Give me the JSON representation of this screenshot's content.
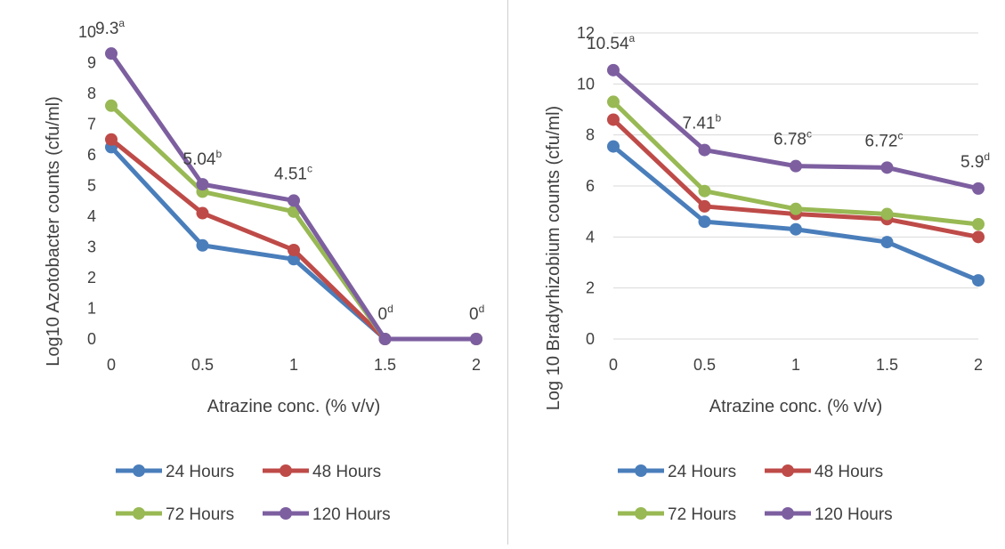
{
  "colors": {
    "s24": "#4a7ebb",
    "s48": "#be4b48",
    "s72": "#98b954",
    "s120": "#7d5fa0"
  },
  "chart_data": [
    {
      "type": "line",
      "x": [
        0,
        0.5,
        1,
        1.5,
        2
      ],
      "x_tick_labels": [
        "0",
        "0.5",
        "1",
        "1.5",
        "2"
      ],
      "y_tick_labels": [
        "0",
        "1",
        "2",
        "3",
        "4",
        "5",
        "6",
        "7",
        "8",
        "9",
        "10"
      ],
      "ylim": [
        0,
        10
      ],
      "xlabel": "Atrazine conc. (% v/v)",
      "ylabel": "Log10  Azotobacter counts (cfu/ml)",
      "grid": false,
      "legend_position": "bottom",
      "series": [
        {
          "name": "24 Hours",
          "color_key": "s24",
          "values": [
            6.25,
            3.05,
            2.6,
            0,
            0
          ]
        },
        {
          "name": "48 Hours",
          "color_key": "s48",
          "values": [
            6.5,
            4.1,
            2.9,
            0,
            0
          ]
        },
        {
          "name": "72 Hours",
          "color_key": "s72",
          "values": [
            7.6,
            4.8,
            4.15,
            0,
            0
          ]
        },
        {
          "name": "120 Hours",
          "color_key": "s120",
          "values": [
            9.3,
            5.04,
            4.51,
            0,
            0
          ]
        }
      ],
      "annotations": [
        {
          "value": "9.3",
          "sup": "a",
          "x": 0,
          "y": 9.3
        },
        {
          "value": "5.04",
          "sup": "b",
          "x": 0.5,
          "y": 5.04
        },
        {
          "value": "4.51",
          "sup": "c",
          "x": 1,
          "y": 4.51
        },
        {
          "value": "0",
          "sup": "d",
          "x": 1.5,
          "y": 0
        },
        {
          "value": "0",
          "sup": "d",
          "x": 2,
          "y": 0
        }
      ]
    },
    {
      "type": "line",
      "x": [
        0,
        0.5,
        1,
        1.5,
        2
      ],
      "x_tick_labels": [
        "0",
        "0.5",
        "1",
        "1.5",
        "2"
      ],
      "y_tick_labels": [
        "0",
        "2",
        "4",
        "6",
        "8",
        "10",
        "12"
      ],
      "ylim": [
        0,
        12
      ],
      "xlabel": "Atrazine conc. (% v/v)",
      "ylabel": "Log 10 Bradyrhizobium counts (cfu/ml)",
      "grid": true,
      "legend_position": "bottom",
      "series": [
        {
          "name": "24 Hours",
          "color_key": "s24",
          "values": [
            7.55,
            4.6,
            4.3,
            3.8,
            2.3
          ]
        },
        {
          "name": "48 Hours",
          "color_key": "s48",
          "values": [
            8.6,
            5.2,
            4.9,
            4.7,
            4.0
          ]
        },
        {
          "name": "72 Hours",
          "color_key": "s72",
          "values": [
            9.3,
            5.8,
            5.1,
            4.9,
            4.5
          ]
        },
        {
          "name": "120 Hours",
          "color_key": "s120",
          "values": [
            10.54,
            7.41,
            6.78,
            6.72,
            5.9
          ]
        }
      ],
      "annotations": [
        {
          "value": "10.54",
          "sup": "a",
          "x": 0,
          "y": 10.54
        },
        {
          "value": "7.41",
          "sup": "b",
          "x": 0.5,
          "y": 7.41
        },
        {
          "value": "6.78",
          "sup": "c",
          "x": 1,
          "y": 6.78
        },
        {
          "value": "6.72",
          "sup": "c",
          "x": 1.5,
          "y": 6.72
        },
        {
          "value": "5.9",
          "sup": "d",
          "x": 2,
          "y": 5.9
        }
      ]
    }
  ]
}
